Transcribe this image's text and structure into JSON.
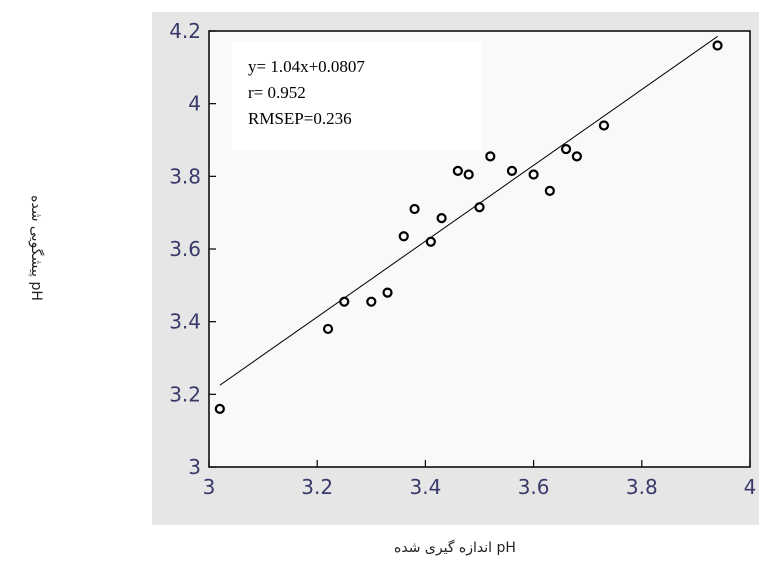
{
  "chart_data": {
    "type": "scatter",
    "xlabel": "pH اندازه گیری شده",
    "ylabel": "pH پیشگویی شده",
    "xlim": [
      3,
      4
    ],
    "ylim": [
      3,
      4.2
    ],
    "x_ticks": [
      "3",
      "3.2",
      "3.4",
      "3.6",
      "3.8",
      "4"
    ],
    "y_ticks": [
      "3",
      "3.2",
      "3.4",
      "3.6",
      "3.8",
      "4",
      "4.2"
    ],
    "points": [
      {
        "x": 3.02,
        "y": 3.16
      },
      {
        "x": 3.22,
        "y": 3.38
      },
      {
        "x": 3.25,
        "y": 3.455
      },
      {
        "x": 3.3,
        "y": 3.455
      },
      {
        "x": 3.33,
        "y": 3.48
      },
      {
        "x": 3.36,
        "y": 3.635
      },
      {
        "x": 3.38,
        "y": 3.71
      },
      {
        "x": 3.41,
        "y": 3.62
      },
      {
        "x": 3.43,
        "y": 3.685
      },
      {
        "x": 3.46,
        "y": 3.815
      },
      {
        "x": 3.48,
        "y": 3.805
      },
      {
        "x": 3.5,
        "y": 3.715
      },
      {
        "x": 3.52,
        "y": 3.855
      },
      {
        "x": 3.56,
        "y": 3.815
      },
      {
        "x": 3.6,
        "y": 3.805
      },
      {
        "x": 3.63,
        "y": 3.76
      },
      {
        "x": 3.66,
        "y": 3.875
      },
      {
        "x": 3.68,
        "y": 3.855
      },
      {
        "x": 3.73,
        "y": 3.94
      },
      {
        "x": 3.94,
        "y": 4.16
      }
    ],
    "fit_line": {
      "x": [
        3.02,
        3.94
      ],
      "y": [
        3.225,
        4.185
      ]
    },
    "annotations": [
      "y= 1.04x+0.0807",
      "r= 0.952",
      "RMSEP=0.236"
    ],
    "grid": false,
    "colors": {
      "plot_background": "#fbf8f8",
      "frame_background": "#e6e6e6",
      "tick_label": "#3a3a6a"
    }
  }
}
